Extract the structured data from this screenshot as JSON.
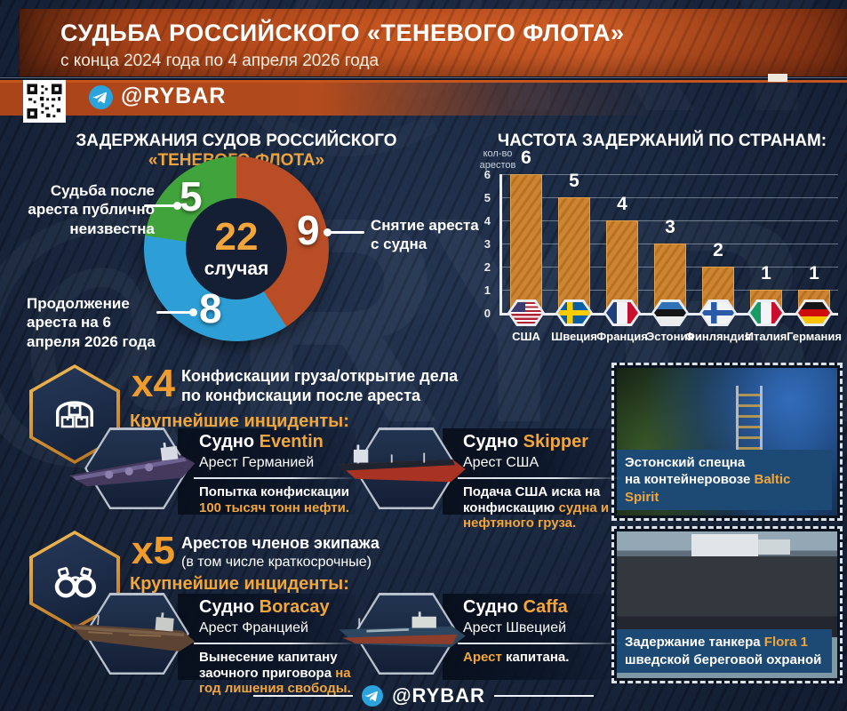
{
  "header": {
    "title": "СУДЬБА РОССИЙСКОГО «ТЕНЕВОГО ФЛОТА»",
    "subtitle": "с конца 2024 года по 4 апреля 2026 года",
    "channel": "@RYBAR"
  },
  "footer": {
    "channel": "@RYBAR"
  },
  "watermark": "@RYBAR",
  "accent_color": "#f2a63a",
  "chart_data": [
    {
      "type": "pie",
      "subtype": "donut",
      "title_white": "ЗАДЕРЖАНИЯ СУДОВ РОССИЙСКОГО ",
      "title_orange": "«ТЕНЕВОГО ФЛОТА»",
      "center_value": "22",
      "center_label": "случая",
      "segments": [
        {
          "label": "Снятие ареста с судна",
          "value": 9,
          "color": "#b84d26"
        },
        {
          "label": "Продолжение ареста на 6 апреля 2026 года",
          "value": 8,
          "color": "#2e9fd6"
        },
        {
          "label": "Судьба после ареста публично неизвестна",
          "value": 5,
          "color": "#41a33c"
        }
      ]
    },
    {
      "type": "bar",
      "title": "ЧАСТОТА ЗАДЕРЖАНИЙ ПО СТРАНАМ:",
      "ylabel": "кол-во арестов",
      "ylim": [
        0,
        6
      ],
      "yticks": [
        6,
        5,
        4,
        3,
        2,
        1,
        0
      ],
      "categories": [
        "США",
        "Швеция",
        "Франция",
        "Эстония",
        "Финляндия",
        "Италия",
        "Германия"
      ],
      "values": [
        6,
        5,
        4,
        3,
        2,
        1,
        1
      ],
      "flags": [
        "us",
        "se",
        "fr",
        "ee",
        "fi",
        "it",
        "de"
      ],
      "bar_color": "#cd8434",
      "grid": true
    }
  ],
  "sections": [
    {
      "multiplier": "x4",
      "icon": "cargo-boxes",
      "title_line1": "Конфискации груза/открытие дела",
      "title_line2": "по конфискации после ареста",
      "subheading": "Крупнейшие инциденты:",
      "incidents": [
        {
          "ship_prefix": "Судно ",
          "ship_name": "Eventin",
          "arrest": "Арест Германией",
          "desc_white": "Попытка конфискации ",
          "desc_orange": "100 тысяч тонн нефти."
        },
        {
          "ship_prefix": "Судно ",
          "ship_name": "Skipper",
          "arrest": "Арест США",
          "desc_white": "Подача США иска на конфискацию ",
          "desc_orange": "судна и нефтяного груза."
        }
      ]
    },
    {
      "multiplier": "x5",
      "icon": "handcuffs",
      "title_line1": "Арестов членов экипажа",
      "title_line2": "(в том числе краткосрочные)",
      "subheading": "Крупнейшие инциденты:",
      "incidents": [
        {
          "ship_prefix": "Судно ",
          "ship_name": "Boracay",
          "arrest": "Арест Францией",
          "desc_white": "Вынесение капитану заочного приговора ",
          "desc_orange": "на год лишения свободы."
        },
        {
          "ship_prefix": "Судно ",
          "ship_name": "Caffa",
          "arrest": "Арест Швецией",
          "desc_orange": "Арест",
          "desc_white": " капитана."
        }
      ]
    }
  ],
  "photos": [
    {
      "line1": "Эстонский спецна",
      "line2_white": "на контейнеровозе ",
      "line2_orange": "Baltic Spirit"
    },
    {
      "line1_white": "Задержание танкера ",
      "line1_orange": "Flora 1",
      "line2": "шведской береговой охраной"
    }
  ]
}
